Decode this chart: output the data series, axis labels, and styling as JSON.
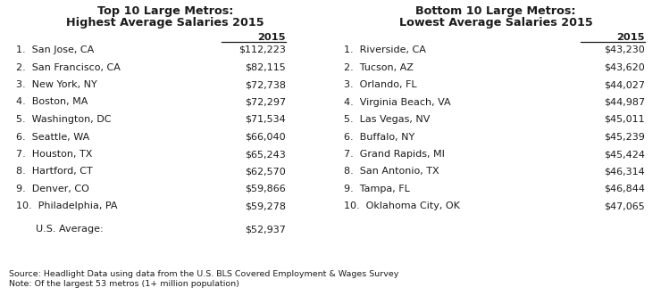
{
  "left_title_line1": "Top 10 Large Metros:",
  "left_title_line2": "Highest Average Salaries 2015",
  "right_title_line1": "Bottom 10 Large Metros:",
  "right_title_line2": "Lowest Average Salaries 2015",
  "left_cities": [
    "1.  San Jose, CA",
    "2.  San Francisco, CA",
    "3.  New York, NY",
    "4.  Boston, MA",
    "5.  Washington, DC",
    "6.  Seattle, WA",
    "7.  Houston, TX",
    "8.  Hartford, CT",
    "9.  Denver, CO",
    "10.  Philadelphia, PA"
  ],
  "left_values": [
    "$112,223",
    "$82,115",
    "$72,738",
    "$72,297",
    "$71,534",
    "$66,040",
    "$65,243",
    "$62,570",
    "$59,866",
    "$59,278"
  ],
  "us_average_label": "U.S. Average:",
  "us_average_value": "$52,937",
  "right_cities": [
    "1.  Riverside, CA",
    "2.  Tucson, AZ",
    "3.  Orlando, FL",
    "4.  Virginia Beach, VA",
    "5.  Las Vegas, NV",
    "6.  Buffalo, NY",
    "7.  Grand Rapids, MI",
    "8.  San Antonio, TX",
    "9.  Tampa, FL",
    "10.  Oklahoma City, OK"
  ],
  "right_values": [
    "$43,230",
    "$43,620",
    "$44,027",
    "$44,987",
    "$45,011",
    "$45,239",
    "$45,424",
    "$46,314",
    "$46,844",
    "$47,065"
  ],
  "col_header": "2015",
  "source_text": "Source: Headlight Data using data from the U.S. BLS Covered Employment & Wages Survey",
  "note_text": "Note: Of the largest 53 metros (1+ million population)",
  "bg_color": "#ffffff",
  "text_color": "#1c1c1c"
}
